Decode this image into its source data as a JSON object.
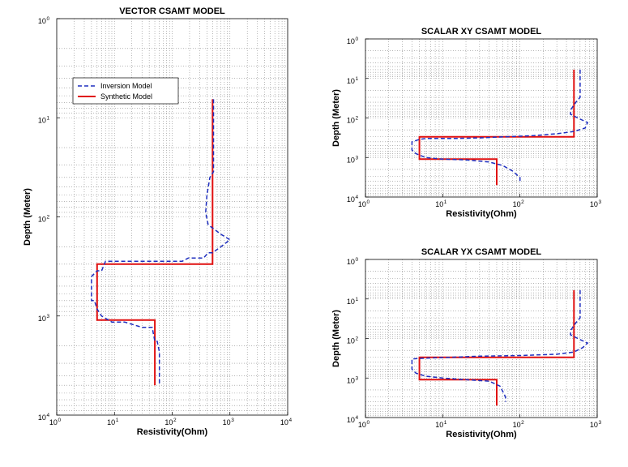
{
  "legend": {
    "inversion_label": "Inversion Model",
    "synthetic_label": "Synthetic Model",
    "placement": "top-left",
    "colors": {
      "inversion": "#1f2fbf",
      "synthetic": "#e01010"
    }
  },
  "chart_data": [
    {
      "id": "vector",
      "type": "line",
      "title": "VECTOR CSAMT MODEL",
      "xlabel": "Resistivity(Ohm)",
      "ylabel": "Depth (Meter)",
      "xscale": "log",
      "yscale": "log",
      "y_inverted": true,
      "xlim": [
        1,
        10000
      ],
      "ylim": [
        1,
        10000
      ],
      "grid": true,
      "legend": true,
      "x_tick_exponents": [
        "0",
        "1",
        "2",
        "3",
        "4"
      ],
      "y_tick_exponents": [
        "0",
        "1",
        "2",
        "3",
        "4"
      ],
      "series": [
        {
          "name": "Synthetic Model",
          "x": [
            500,
            500,
            5,
            5,
            50,
            50
          ],
          "y": [
            6.5,
            300,
            300,
            1100,
            1100,
            5000
          ]
        },
        {
          "name": "Inversion Model",
          "x": [
            520,
            520,
            450,
            400,
            380,
            420,
            700,
            1000,
            700,
            500,
            420,
            350,
            300,
            250,
            190,
            150,
            70,
            35,
            18,
            10,
            7,
            6,
            5,
            4,
            4,
            4.5,
            5,
            6,
            9,
            15,
            30,
            45,
            50,
            55,
            60,
            60
          ],
          "y": [
            6.5,
            35,
            40,
            60,
            90,
            120,
            150,
            170,
            200,
            230,
            230,
            260,
            260,
            260,
            260,
            280,
            280,
            280,
            280,
            280,
            280,
            350,
            350,
            400,
            700,
            700,
            850,
            1000,
            1150,
            1150,
            1300,
            1300,
            1800,
            1800,
            2300,
            5000
          ]
        }
      ]
    },
    {
      "id": "xy",
      "type": "line",
      "title": "SCALAR XY CSAMT MODEL",
      "xlabel": "Resistivity(Ohm)",
      "ylabel": "Depth (Meter)",
      "xscale": "log",
      "yscale": "log",
      "y_inverted": true,
      "xlim": [
        1,
        1000
      ],
      "ylim": [
        1,
        10000
      ],
      "grid": true,
      "legend": false,
      "x_tick_exponents": [
        "0",
        "1",
        "2",
        "3"
      ],
      "y_tick_exponents": [
        "0",
        "1",
        "2",
        "3",
        "4"
      ],
      "series": [
        {
          "name": "Synthetic Model",
          "x": [
            500,
            500,
            5,
            5,
            50,
            50
          ],
          "y": [
            6,
            300,
            300,
            1100,
            1100,
            5000
          ]
        },
        {
          "name": "Inversion Model",
          "x": [
            600,
            600,
            530,
            460,
            450,
            560,
            750,
            700,
            500,
            300,
            150,
            60,
            30,
            15,
            8,
            6,
            5,
            4,
            4,
            4.5,
            6,
            10,
            20,
            40,
            60,
            80,
            100,
            100
          ],
          "y": [
            6,
            30,
            40,
            60,
            80,
            100,
            130,
            180,
            220,
            250,
            280,
            300,
            320,
            330,
            330,
            330,
            350,
            400,
            650,
            800,
            1000,
            1100,
            1150,
            1300,
            1600,
            2200,
            3200,
            4000
          ]
        }
      ]
    },
    {
      "id": "yx",
      "type": "line",
      "title": "SCALAR YX CSAMT MODEL",
      "xlabel": "Resistivity(Ohm)",
      "ylabel": "Depth (Meter)",
      "xscale": "log",
      "yscale": "log",
      "y_inverted": true,
      "xlim": [
        1,
        1000
      ],
      "ylim": [
        1,
        10000
      ],
      "grid": true,
      "legend": false,
      "x_tick_exponents": [
        "0",
        "1",
        "2",
        "3"
      ],
      "y_tick_exponents": [
        "0",
        "1",
        "2",
        "3",
        "4"
      ],
      "series": [
        {
          "name": "Synthetic Model",
          "x": [
            500,
            500,
            5,
            5,
            50,
            50
          ],
          "y": [
            6,
            300,
            300,
            1100,
            1100,
            5000
          ]
        },
        {
          "name": "Inversion Model",
          "x": [
            600,
            600,
            530,
            460,
            450,
            560,
            750,
            650,
            500,
            300,
            100,
            30,
            12,
            7,
            5,
            4,
            4,
            4.5,
            6,
            10,
            20,
            40,
            55,
            60,
            65,
            65
          ],
          "y": [
            6,
            30,
            40,
            60,
            80,
            100,
            130,
            170,
            220,
            250,
            270,
            280,
            300,
            310,
            320,
            330,
            600,
            750,
            900,
            1000,
            1100,
            1200,
            1600,
            2200,
            3000,
            4000
          ]
        }
      ]
    }
  ]
}
